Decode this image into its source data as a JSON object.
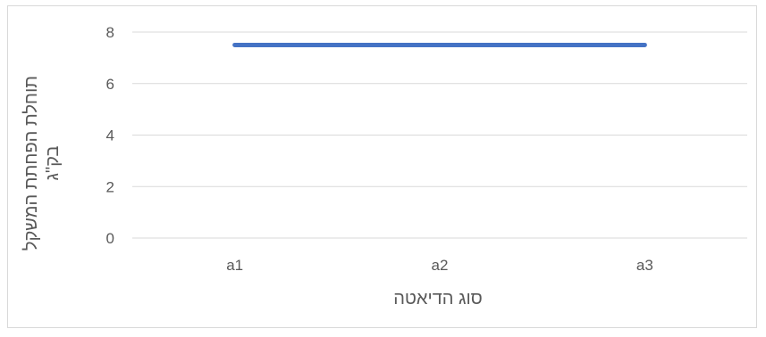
{
  "chart_data": {
    "type": "line",
    "categories": [
      "a1",
      "a2",
      "a3"
    ],
    "series": [
      {
        "values": [
          7.5,
          7.5,
          7.5
        ],
        "color": "#4472C4"
      }
    ],
    "xlabel": "סוג הדיאטה",
    "ylabel_lines": [
      "תוחלת הפחתת המשקל",
      "בק\"ג"
    ],
    "ylim": [
      0,
      8
    ],
    "yticks": [
      0,
      2,
      4,
      6,
      8
    ],
    "grid": true,
    "legend": "none"
  }
}
